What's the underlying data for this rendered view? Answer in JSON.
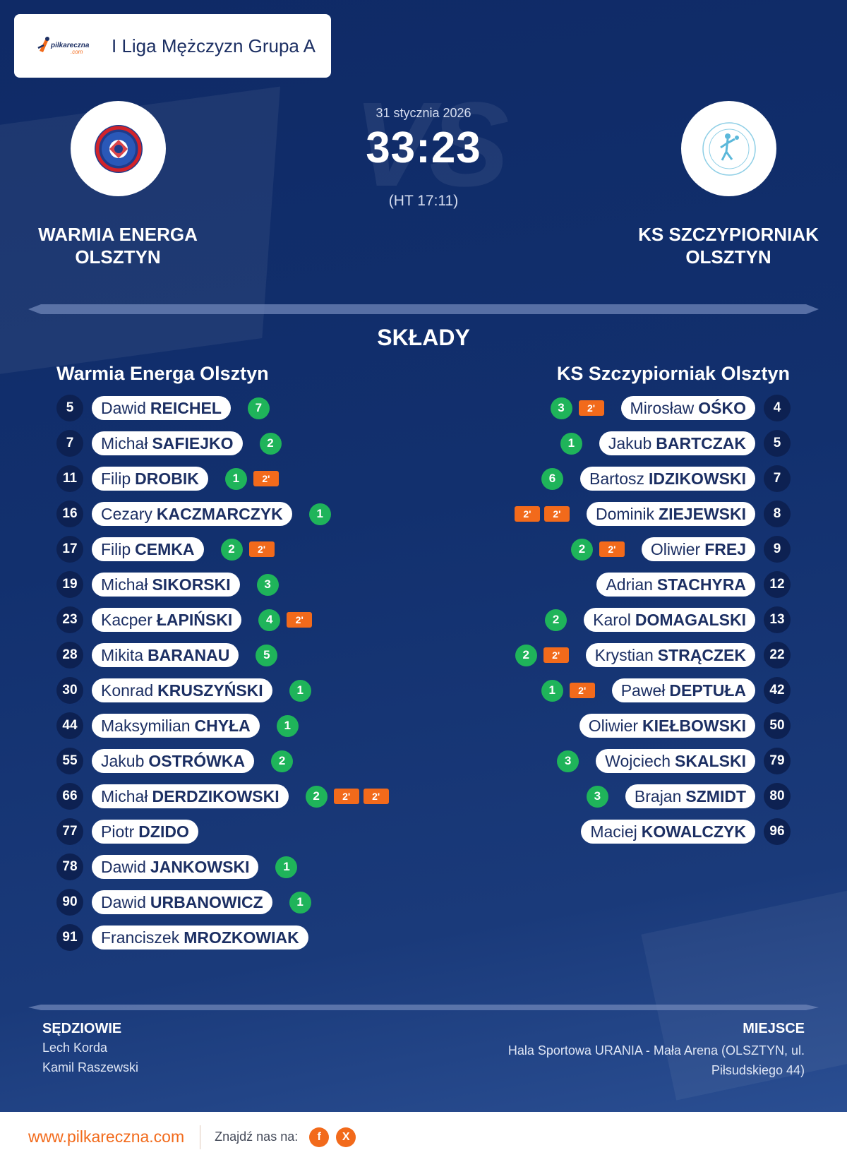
{
  "header": {
    "league_logo": "pilkareczna-logo",
    "league_logo_text": "pilkareczna .com",
    "league_title": "I Liga Mężczyzn Grupa A"
  },
  "match": {
    "date": "31 stycznia 2026",
    "score": "33:23",
    "halftime": "(HT 17:11)",
    "vs_watermark": "VS",
    "home_team": "WARMIA ENERGA OLSZTYN",
    "away_team": "KS SZCZYPIORNIAK OLSZTYN",
    "home_crest": "warmia-energa-crest",
    "away_crest": "ks-szczypiorniak-crest"
  },
  "lineups": {
    "title": "SKŁADY",
    "home": {
      "team": "Warmia Energa Olsztyn",
      "players": [
        {
          "number": "5",
          "first": "Dawid",
          "last": "REICHEL",
          "goals": "7",
          "suspensions": []
        },
        {
          "number": "7",
          "first": "Michał",
          "last": "SAFIEJKO",
          "goals": "2",
          "suspensions": []
        },
        {
          "number": "11",
          "first": "Filip",
          "last": "DROBIK",
          "goals": "1",
          "suspensions": [
            "2'"
          ]
        },
        {
          "number": "16",
          "first": "Cezary",
          "last": "KACZMARCZYK",
          "goals": "1",
          "suspensions": []
        },
        {
          "number": "17",
          "first": "Filip",
          "last": "CEMKA",
          "goals": "2",
          "suspensions": [
            "2'"
          ]
        },
        {
          "number": "19",
          "first": "Michał",
          "last": "SIKORSKI",
          "goals": "3",
          "suspensions": []
        },
        {
          "number": "23",
          "first": "Kacper",
          "last": "ŁAPIŃSKI",
          "goals": "4",
          "suspensions": [
            "2'"
          ]
        },
        {
          "number": "28",
          "first": "Mikita",
          "last": "BARANAU",
          "goals": "5",
          "suspensions": []
        },
        {
          "number": "30",
          "first": "Konrad",
          "last": "KRUSZYŃSKI",
          "goals": "1",
          "suspensions": []
        },
        {
          "number": "44",
          "first": "Maksymilian",
          "last": "CHYŁA",
          "goals": "1",
          "suspensions": []
        },
        {
          "number": "55",
          "first": "Jakub",
          "last": "OSTRÓWKA",
          "goals": "2",
          "suspensions": []
        },
        {
          "number": "66",
          "first": "Michał",
          "last": "DERDZIKOWSKI",
          "goals": "2",
          "suspensions": [
            "2'",
            "2'"
          ]
        },
        {
          "number": "77",
          "first": "Piotr",
          "last": "DZIDO",
          "goals": "",
          "suspensions": []
        },
        {
          "number": "78",
          "first": "Dawid",
          "last": "JANKOWSKI",
          "goals": "1",
          "suspensions": []
        },
        {
          "number": "90",
          "first": "Dawid",
          "last": "URBANOWICZ",
          "goals": "1",
          "suspensions": []
        },
        {
          "number": "91",
          "first": "Franciszek",
          "last": "MROZKOWIAK",
          "goals": "",
          "suspensions": []
        }
      ]
    },
    "away": {
      "team": "KS Szczypiorniak Olsztyn",
      "players": [
        {
          "number": "4",
          "first": "Mirosław",
          "last": "OŚKO",
          "goals": "3",
          "suspensions": [
            "2'"
          ]
        },
        {
          "number": "5",
          "first": "Jakub",
          "last": "BARTCZAK",
          "goals": "1",
          "suspensions": []
        },
        {
          "number": "7",
          "first": "Bartosz",
          "last": "IDZIKOWSKI",
          "goals": "6",
          "suspensions": []
        },
        {
          "number": "8",
          "first": "Dominik",
          "last": "ZIEJEWSKI",
          "goals": "",
          "suspensions": [
            "2'",
            "2'"
          ]
        },
        {
          "number": "9",
          "first": "Oliwier",
          "last": "FREJ",
          "goals": "2",
          "suspensions": [
            "2'"
          ]
        },
        {
          "number": "12",
          "first": "Adrian",
          "last": "STACHYRA",
          "goals": "",
          "suspensions": []
        },
        {
          "number": "13",
          "first": "Karol",
          "last": "DOMAGALSKI",
          "goals": "2",
          "suspensions": []
        },
        {
          "number": "22",
          "first": "Krystian",
          "last": "STRĄCZEK",
          "goals": "2",
          "suspensions": [
            "2'"
          ]
        },
        {
          "number": "42",
          "first": "Paweł",
          "last": "DEPTUŁA",
          "goals": "1",
          "suspensions": [
            "2'"
          ]
        },
        {
          "number": "50",
          "first": "Oliwier",
          "last": "KIEŁBOWSKI",
          "goals": "",
          "suspensions": []
        },
        {
          "number": "79",
          "first": "Wojciech",
          "last": "SKALSKI",
          "goals": "3",
          "suspensions": []
        },
        {
          "number": "80",
          "first": "Brajan",
          "last": "SZMIDT",
          "goals": "3",
          "suspensions": []
        },
        {
          "number": "96",
          "first": "Maciej",
          "last": "KOWALCZYK",
          "goals": "",
          "suspensions": []
        }
      ]
    }
  },
  "officials": {
    "title": "SĘDZIOWIE",
    "names": [
      "Lech Korda",
      "Kamil Raszewski"
    ]
  },
  "venue": {
    "title": "MIEJSCE",
    "text": "Hala Sportowa URANIA - Mała Arena (OLSZTYN, ul. Piłsudskiego 44)"
  },
  "footer": {
    "site": "www.pilkareczna.com",
    "follow_label": "Znajdź nas na:",
    "social": [
      {
        "icon": "facebook-icon",
        "glyph": "f"
      },
      {
        "icon": "x-icon",
        "glyph": "X"
      }
    ]
  },
  "colors": {
    "background": "#12306e",
    "goal_badge": "#1fb45a",
    "suspension_badge": "#f26a1b",
    "accent": "#f26a1b",
    "number_circle": "#0d2152"
  }
}
